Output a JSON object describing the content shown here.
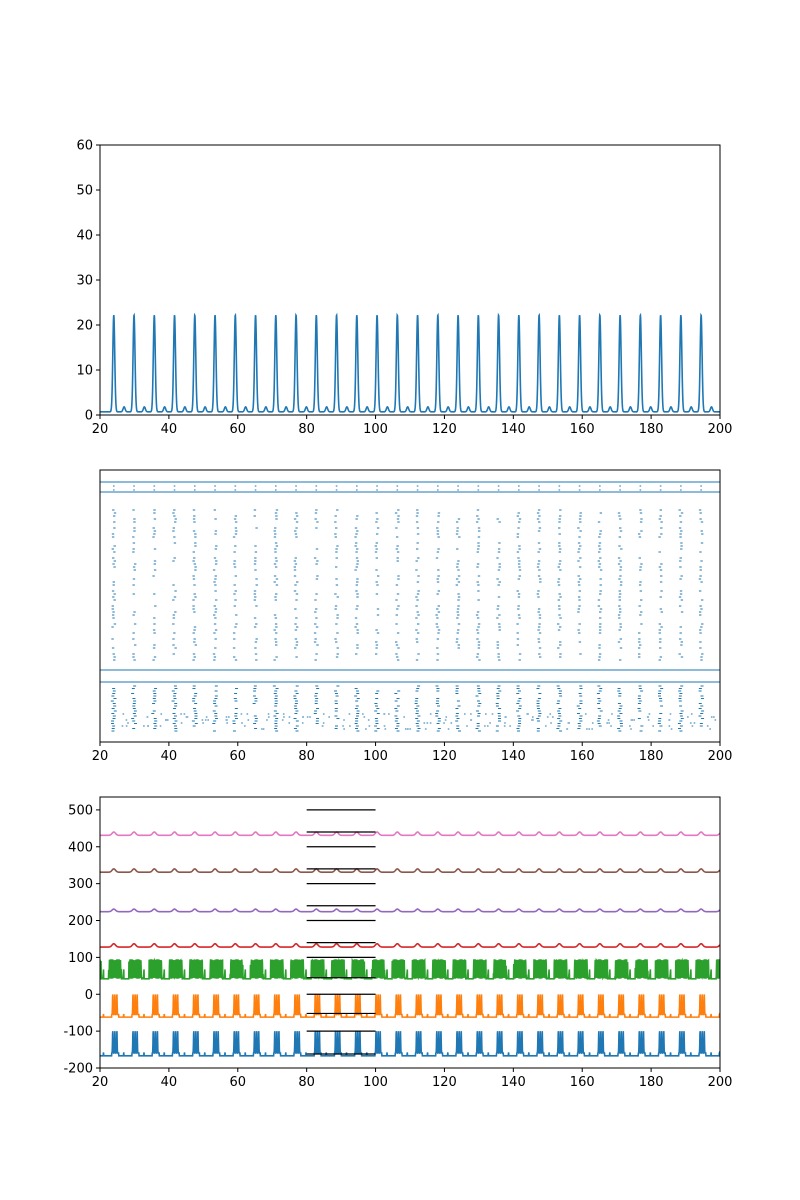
{
  "chart_data": [
    {
      "type": "line",
      "title": "",
      "xlabel": "",
      "ylabel": "",
      "xlim": [
        20,
        200
      ],
      "ylim": [
        0,
        60
      ],
      "x_ticks": [
        20,
        40,
        60,
        80,
        100,
        120,
        140,
        160,
        180,
        200
      ],
      "y_ticks": [
        0,
        10,
        20,
        30,
        40,
        50,
        60
      ],
      "grid": false,
      "series": [
        {
          "color": "#1f77b4",
          "pattern": "periodic pulse train",
          "period": 5.88,
          "first_peak_x": 24.0,
          "last_peak_x": 197.6,
          "peak_value": 22.2,
          "secondary_peak_value": 1.8,
          "secondary_peak_offset": 3.0,
          "baseline_value": 0.7
        }
      ]
    },
    {
      "type": "scatter",
      "title": "",
      "xlabel": "",
      "ylabel": "",
      "xlim": [
        20,
        200
      ],
      "x_ticks": [
        20,
        40,
        60,
        80,
        100,
        120,
        140,
        160,
        180,
        200
      ],
      "y_ticks": [],
      "grid": false,
      "color": "#1f77b4",
      "description": "raster of spike events aligned with the pulse train",
      "period": 5.88,
      "first_burst_x": 24.0,
      "horizontal_lines": 4
    },
    {
      "type": "line",
      "title": "",
      "xlabel": "",
      "ylabel": "",
      "xlim": [
        20,
        200
      ],
      "ylim": [
        -200,
        535
      ],
      "x_ticks": [
        20,
        40,
        60,
        80,
        100,
        120,
        140,
        160,
        180,
        200
      ],
      "y_ticks": [
        -200,
        -100,
        0,
        100,
        200,
        300,
        400,
        500
      ],
      "grid": false,
      "series": [
        {
          "color": "#1f77b4",
          "baseline": -167,
          "spike_top": -105,
          "kind": "spiking"
        },
        {
          "color": "#ff7f0e",
          "baseline": -62,
          "spike_top": -5,
          "kind": "spiking"
        },
        {
          "color": "#2ca02c",
          "baseline": 42,
          "spike_top": 95,
          "kind": "bursting"
        },
        {
          "color": "#d62728",
          "baseline": 128,
          "spike_top": 137,
          "kind": "bump"
        },
        {
          "color": "#9467bd",
          "baseline": 224,
          "spike_top": 231,
          "kind": "bump"
        },
        {
          "color": "#8c564b",
          "baseline": 331,
          "spike_top": 340,
          "kind": "bump"
        },
        {
          "color": "#e377c2",
          "baseline": 431,
          "spike_top": 440,
          "kind": "bump"
        }
      ],
      "scale_bars": {
        "color": "#000000",
        "x_range": [
          80,
          100
        ],
        "y_values": [
          -162,
          -100,
          -52,
          0,
          45,
          100,
          140,
          200,
          240,
          300,
          340,
          400,
          440,
          500
        ]
      }
    }
  ]
}
